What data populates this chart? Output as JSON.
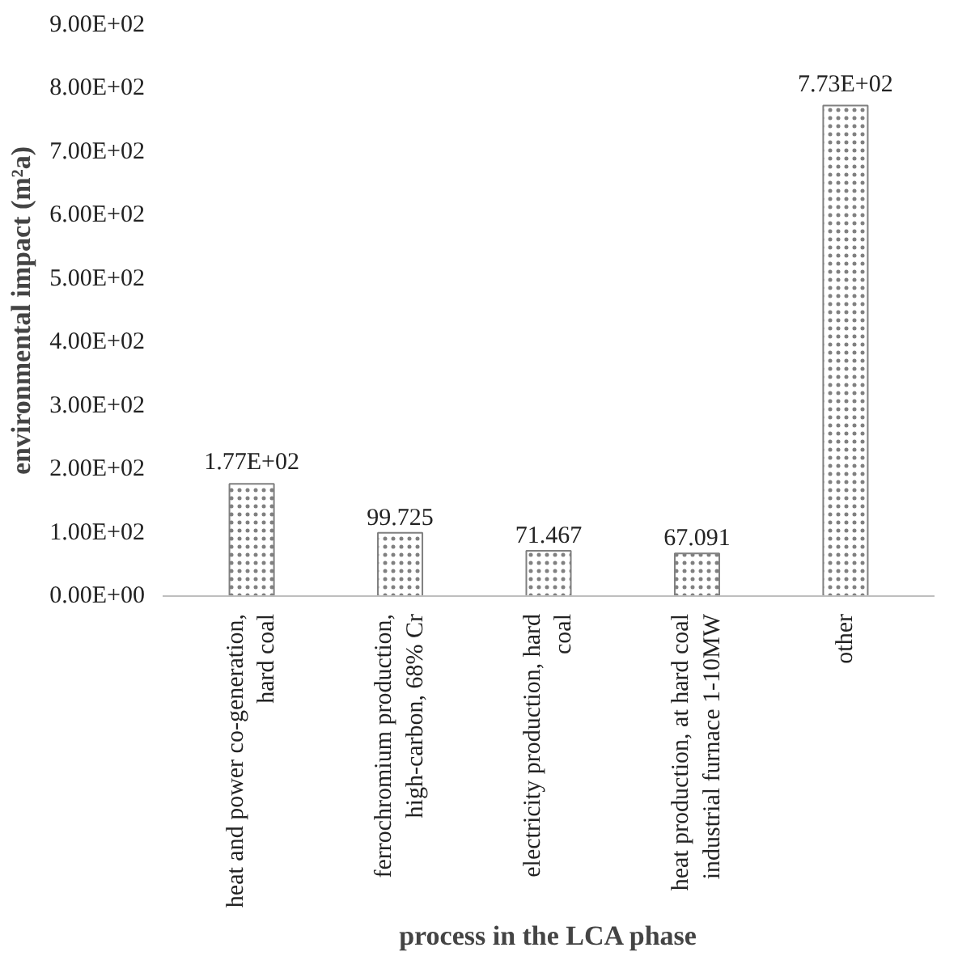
{
  "chart_data": {
    "type": "bar",
    "xlabel": "process in the LCA phase",
    "ylabel": "environmental impact (m²a)",
    "categories": [
      "heat and power co-generation, hard coal",
      "ferrochromium production, high-carbon, 68% Cr",
      "electricity production, hard coal",
      "heat production, at hard coal industrial furnace 1-10MW",
      "other"
    ],
    "values": [
      177,
      99.725,
      71.467,
      67.091,
      773
    ],
    "value_labels": [
      "1.77E+02",
      "99.725",
      "71.467",
      "67.091",
      "7.73E+02"
    ],
    "color": "#808080",
    "ylim": [
      0,
      900
    ],
    "yticks": [
      {
        "value": 0,
        "label": "0.00E+00"
      },
      {
        "value": 100,
        "label": "1.00E+02"
      },
      {
        "value": 200,
        "label": "2.00E+02"
      },
      {
        "value": 300,
        "label": "3.00E+02"
      },
      {
        "value": 400,
        "label": "4.00E+02"
      },
      {
        "value": 500,
        "label": "5.00E+02"
      },
      {
        "value": 600,
        "label": "6.00E+02"
      },
      {
        "value": 700,
        "label": "7.00E+02"
      },
      {
        "value": 800,
        "label": "8.00E+02"
      },
      {
        "value": 900,
        "label": "9.00E+02"
      }
    ],
    "grid": false
  }
}
